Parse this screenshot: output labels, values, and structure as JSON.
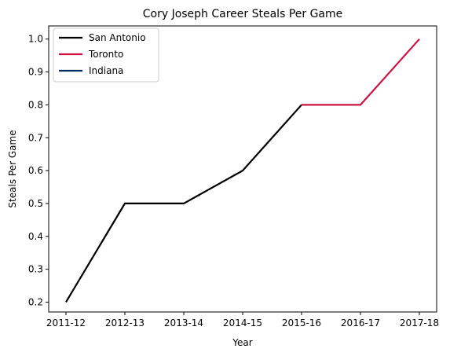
{
  "chart_data": {
    "type": "line",
    "title": "Cory Joseph Career Steals Per Game",
    "xlabel": "Year",
    "ylabel": "Steals Per Game",
    "categories": [
      "2011-12",
      "2012-13",
      "2013-14",
      "2014-15",
      "2015-16",
      "2016-17",
      "2017-18"
    ],
    "ylim": [
      0.17,
      1.04
    ],
    "yticks": [
      0.2,
      0.3,
      0.4,
      0.5,
      0.6,
      0.7,
      0.8,
      0.9,
      1.0
    ],
    "ytick_labels": [
      "0.2",
      "0.3",
      "0.4",
      "0.5",
      "0.6",
      "0.7",
      "0.8",
      "0.9",
      "1.0"
    ],
    "grid": false,
    "legend_position": "top-left",
    "series": [
      {
        "name": "San Antonio",
        "color": "#000000",
        "points": [
          [
            0,
            0.2
          ],
          [
            1,
            0.5
          ],
          [
            2,
            0.5
          ],
          [
            3,
            0.6
          ],
          [
            4,
            0.8
          ]
        ]
      },
      {
        "name": "Toronto",
        "color": "#ce1141",
        "points": [
          [
            4,
            0.8
          ],
          [
            5,
            0.8
          ],
          [
            6,
            1.0
          ]
        ]
      },
      {
        "name": "Indiana",
        "color": "#002d62",
        "points": []
      }
    ]
  }
}
